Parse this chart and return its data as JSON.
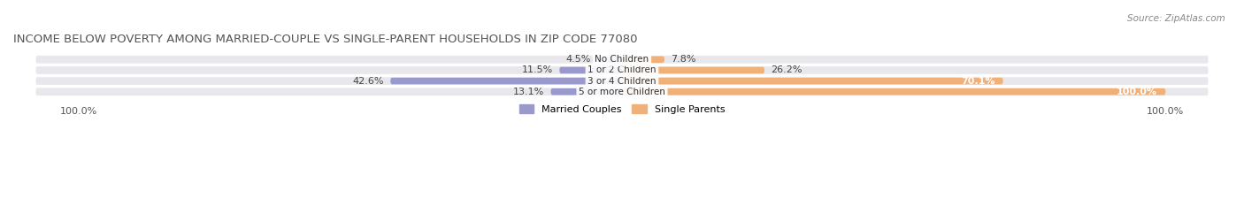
{
  "title": "INCOME BELOW POVERTY AMONG MARRIED-COUPLE VS SINGLE-PARENT HOUSEHOLDS IN ZIP CODE 77080",
  "source": "Source: ZipAtlas.com",
  "categories": [
    "No Children",
    "1 or 2 Children",
    "3 or 4 Children",
    "5 or more Children"
  ],
  "married_values": [
    4.5,
    11.5,
    42.6,
    13.1
  ],
  "single_values": [
    7.8,
    26.2,
    70.1,
    100.0
  ],
  "married_color": "#9999cc",
  "single_color": "#f0b07a",
  "bar_bg_color": "#e8e8ec",
  "title_fontsize": 9.5,
  "label_fontsize": 8.0,
  "xlim": 100.0,
  "legend_married": "Married Couples",
  "legend_single": "Single Parents",
  "fig_width": 14.06,
  "fig_height": 2.33,
  "dpi": 100
}
